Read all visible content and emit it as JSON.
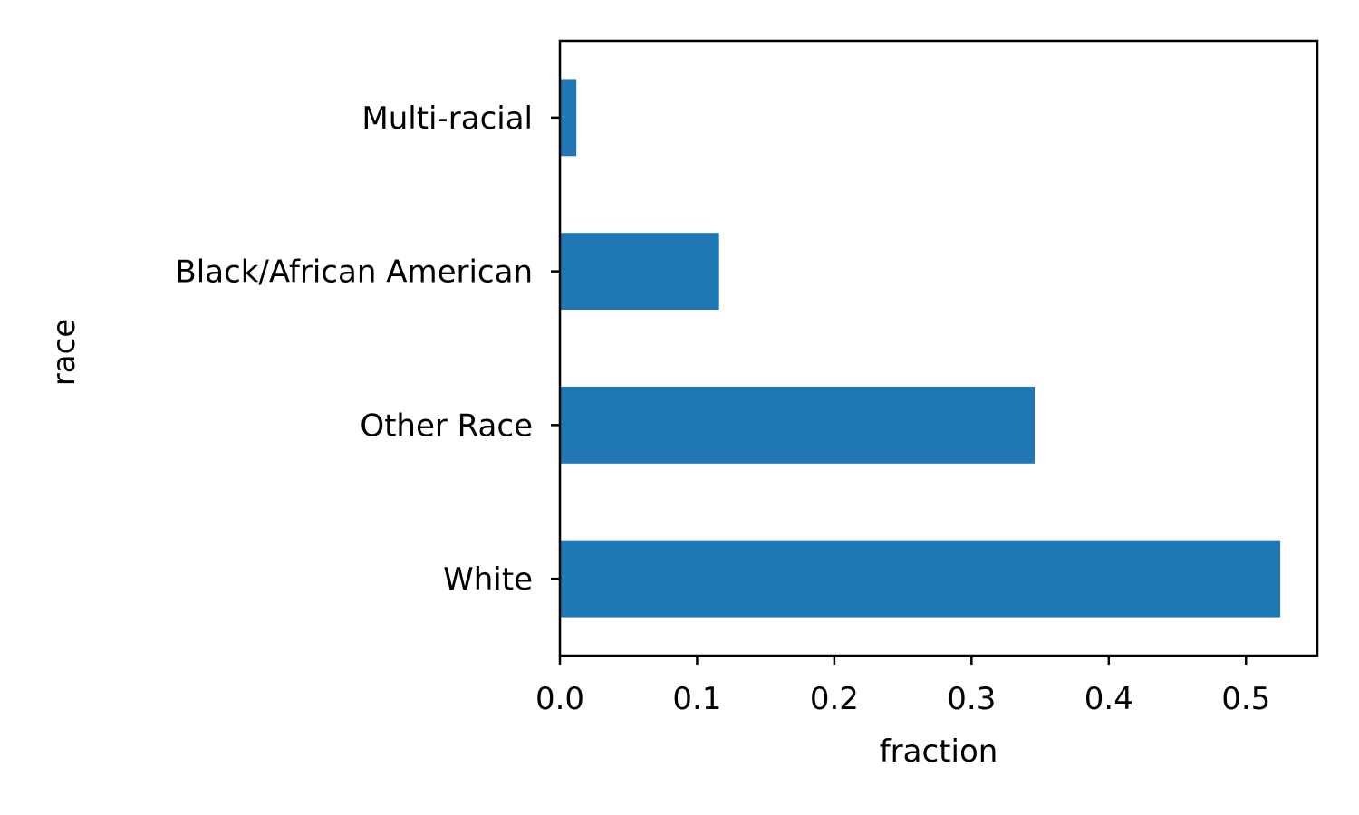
{
  "chart_data": {
    "type": "bar",
    "orientation": "horizontal",
    "categories": [
      "White",
      "Other Race",
      "Black/African American",
      "Multi-racial"
    ],
    "values": [
      0.525,
      0.346,
      0.116,
      0.012
    ],
    "xlabel": "fraction",
    "ylabel": "race",
    "xlim": [
      0,
      0.552
    ],
    "xticks": [
      0.0,
      0.1,
      0.2,
      0.3,
      0.4,
      0.5
    ],
    "xtick_labels": [
      "0.0",
      "0.1",
      "0.2",
      "0.3",
      "0.4",
      "0.5"
    ],
    "grid": false,
    "bar_color": "#1f77b4"
  }
}
